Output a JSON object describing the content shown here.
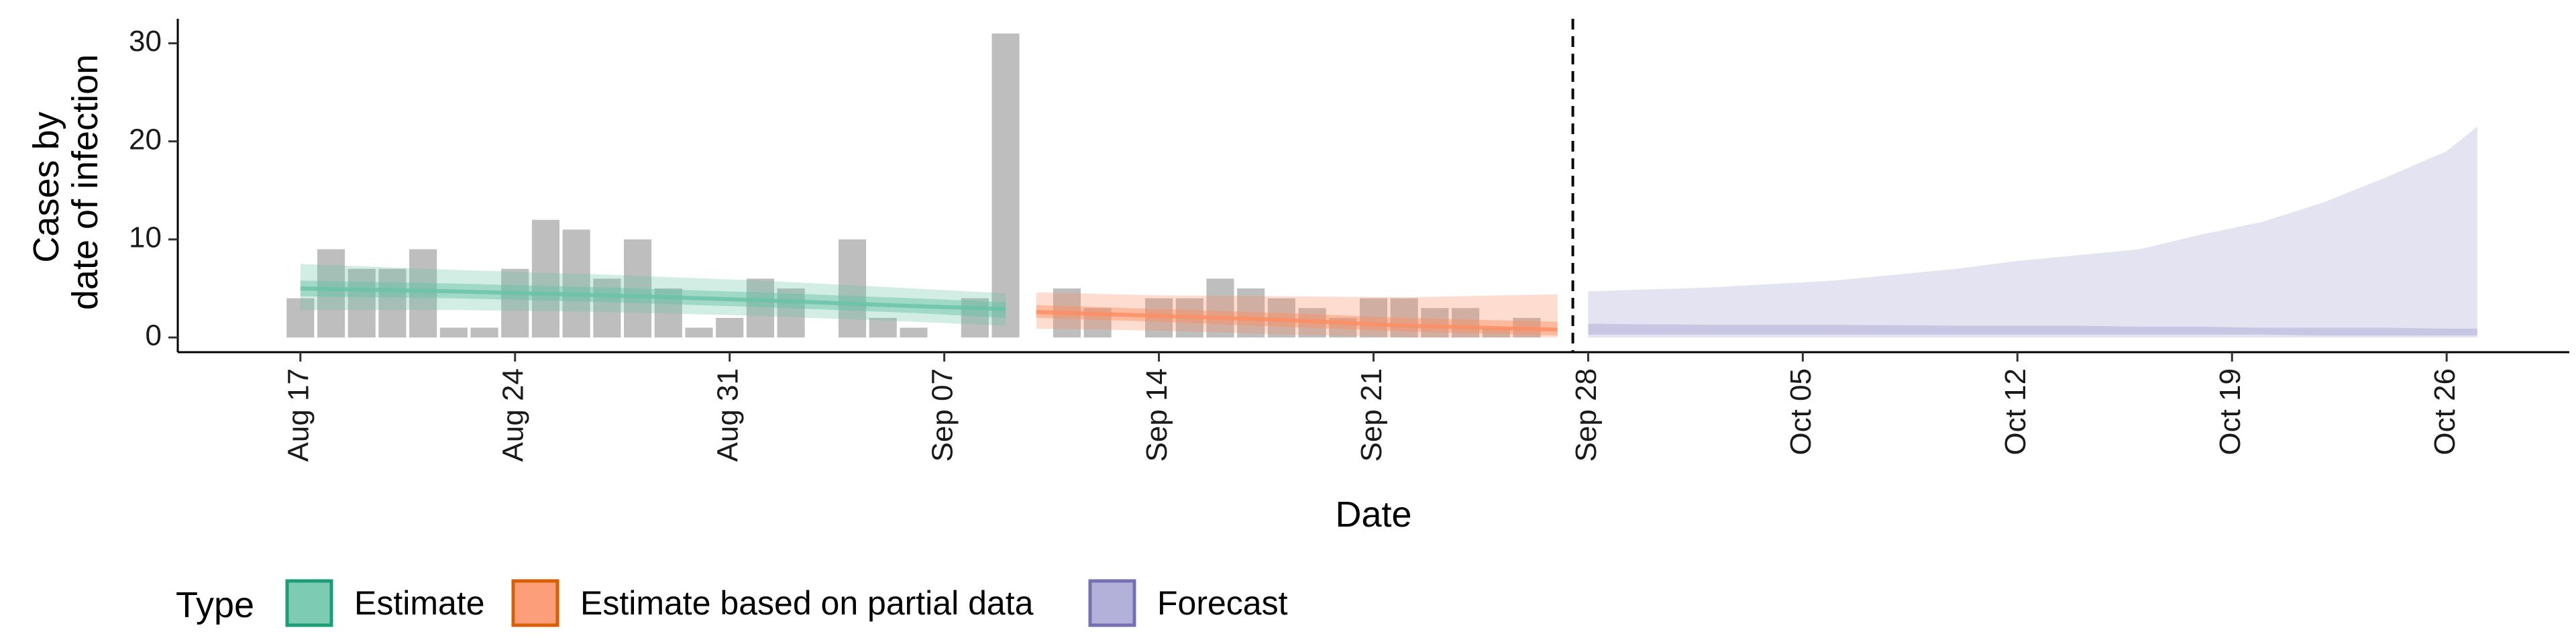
{
  "chart_data": {
    "type": "bar",
    "title": "",
    "xlabel": "Date",
    "ylabel": [
      "Cases by",
      "date of infection"
    ],
    "ylim": [
      -1.5,
      32.5
    ],
    "yticks": [
      0,
      10,
      20,
      30
    ],
    "x_start_date": "2020-08-17",
    "xticks": [
      {
        "day": 0,
        "label": "Aug 17"
      },
      {
        "day": 7,
        "label": "Aug 24"
      },
      {
        "day": 14,
        "label": "Aug 31"
      },
      {
        "day": 21,
        "label": "Sep 07"
      },
      {
        "day": 28,
        "label": "Sep 14"
      },
      {
        "day": 35,
        "label": "Sep 21"
      },
      {
        "day": 42,
        "label": "Sep 28"
      },
      {
        "day": 49,
        "label": "Oct 05"
      },
      {
        "day": 56,
        "label": "Oct 12"
      },
      {
        "day": 63,
        "label": "Oct 19"
      },
      {
        "day": 70,
        "label": "Oct 26"
      }
    ],
    "xlim": [
      -4,
      74
    ],
    "grid": false,
    "bar_color": "#bebebe",
    "observed_cases": [
      {
        "day": 0,
        "value": 4
      },
      {
        "day": 1,
        "value": 9
      },
      {
        "day": 2,
        "value": 7
      },
      {
        "day": 3,
        "value": 7
      },
      {
        "day": 4,
        "value": 9
      },
      {
        "day": 5,
        "value": 1
      },
      {
        "day": 6,
        "value": 1
      },
      {
        "day": 7,
        "value": 7
      },
      {
        "day": 8,
        "value": 12
      },
      {
        "day": 9,
        "value": 11
      },
      {
        "day": 10,
        "value": 6
      },
      {
        "day": 11,
        "value": 10
      },
      {
        "day": 12,
        "value": 5
      },
      {
        "day": 13,
        "value": 1
      },
      {
        "day": 14,
        "value": 2
      },
      {
        "day": 15,
        "value": 6
      },
      {
        "day": 16,
        "value": 5
      },
      {
        "day": 18,
        "value": 10
      },
      {
        "day": 19,
        "value": 2
      },
      {
        "day": 20,
        "value": 1
      },
      {
        "day": 22,
        "value": 4
      },
      {
        "day": 23,
        "value": 31
      },
      {
        "day": 25,
        "value": 5
      },
      {
        "day": 26,
        "value": 3
      },
      {
        "day": 28,
        "value": 4
      },
      {
        "day": 29,
        "value": 4
      },
      {
        "day": 30,
        "value": 6
      },
      {
        "day": 31,
        "value": 5
      },
      {
        "day": 32,
        "value": 4
      },
      {
        "day": 33,
        "value": 3
      },
      {
        "day": 34,
        "value": 2
      },
      {
        "day": 35,
        "value": 4
      },
      {
        "day": 36,
        "value": 4
      },
      {
        "day": 37,
        "value": 3
      },
      {
        "day": 38,
        "value": 3
      },
      {
        "day": 39,
        "value": 1
      },
      {
        "day": 40,
        "value": 2
      }
    ],
    "forecast_divider_day": 41.5,
    "series": [
      {
        "name": "Estimate",
        "color": "#1b9e77",
        "fill": "#66c2a5",
        "x": [
          0,
          5,
          10,
          15,
          20,
          23
        ],
        "median": [
          5.0,
          4.7,
          4.3,
          3.8,
          3.2,
          2.9
        ],
        "inner_lower": [
          4.2,
          4.0,
          3.6,
          3.1,
          2.5,
          2.0
        ],
        "inner_upper": [
          5.8,
          5.5,
          5.1,
          4.6,
          4.0,
          3.6
        ],
        "outer_lower": [
          2.8,
          2.8,
          2.6,
          2.2,
          1.6,
          1.2
        ],
        "outer_upper": [
          7.5,
          6.9,
          6.4,
          5.8,
          5.0,
          4.5
        ]
      },
      {
        "name": "Estimate based on partial data",
        "color": "#d95f02",
        "fill": "#fc8d62",
        "x": [
          24,
          28,
          32,
          36,
          41
        ],
        "median": [
          2.6,
          2.2,
          1.8,
          1.2,
          0.8
        ],
        "inner_lower": [
          2.0,
          1.6,
          1.1,
          0.6,
          0.2
        ],
        "inner_upper": [
          3.3,
          2.9,
          2.5,
          2.0,
          1.6
        ],
        "outer_lower": [
          0.9,
          0.7,
          0.3,
          0.0,
          0.0
        ],
        "outer_upper": [
          4.6,
          4.3,
          4.2,
          4.1,
          4.4
        ]
      },
      {
        "name": "Forecast",
        "color": "#7570b3",
        "fill": "#a6a3d2",
        "x": [
          42,
          46,
          50,
          54,
          56,
          58,
          60,
          62,
          64,
          66,
          68,
          70,
          71
        ],
        "inner_lower": [
          0.3,
          0.3,
          0.3,
          0.3,
          0.3,
          0.3,
          0.3,
          0.3,
          0.3,
          0.2,
          0.2,
          0.2,
          0.2
        ],
        "inner_upper": [
          1.4,
          1.3,
          1.3,
          1.2,
          1.2,
          1.2,
          1.1,
          1.1,
          1.0,
          1.0,
          1.0,
          0.9,
          0.9
        ],
        "outer_lower": [
          0,
          0,
          0,
          0,
          0,
          0,
          0,
          0,
          0,
          0,
          0,
          0,
          0
        ],
        "outer_upper": [
          4.7,
          5.1,
          5.8,
          7.0,
          7.8,
          8.4,
          9.0,
          10.5,
          11.8,
          13.8,
          16.3,
          19.0,
          21.5
        ]
      }
    ],
    "legend": {
      "title": "Type",
      "placement": "bottom-left",
      "entries": [
        "Estimate",
        "Estimate based on partial data",
        "Forecast"
      ]
    }
  }
}
